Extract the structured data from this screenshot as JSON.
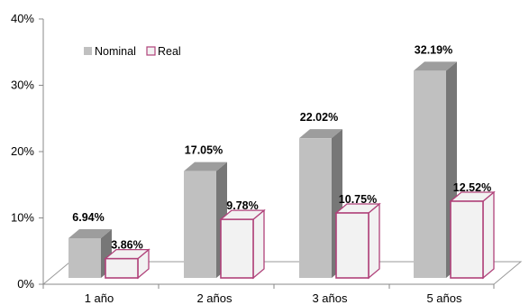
{
  "chart_data": {
    "type": "bar",
    "title": "",
    "xlabel": "",
    "ylabel": "",
    "ylim": [
      0,
      40
    ],
    "yticks": [
      "0%",
      "10%",
      "20%",
      "30%",
      "40%"
    ],
    "y_tick_values": [
      0,
      10,
      20,
      30,
      40
    ],
    "categories": [
      "1 año",
      "2 años",
      "3 años",
      "5 años"
    ],
    "series": [
      {
        "name": "Nominal",
        "values": [
          6.94,
          17.05,
          22.02,
          32.19
        ],
        "labels": [
          "6.94%",
          "17.05%",
          "22.02%",
          "32.19%"
        ],
        "color": "#c0c0c0"
      },
      {
        "name": "Real",
        "values": [
          3.86,
          9.78,
          10.75,
          12.52
        ],
        "labels": [
          "3.86%",
          "9.78%",
          "10.75%",
          "12.52%"
        ],
        "color": "#f2f2f2",
        "border_color": "#b0427a"
      }
    ],
    "legend_position": "top-left",
    "style": "3d-column"
  }
}
